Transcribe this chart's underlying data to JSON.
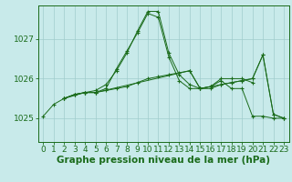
{
  "bg_color": "#c8eaea",
  "grid_color": "#a0cccc",
  "line_color": "#1a6b1a",
  "xlabel": "Graphe pression niveau de la mer (hPa)",
  "xlabel_fontsize": 7.5,
  "tick_fontsize": 6.5,
  "yticks": [
    1025,
    1026,
    1027
  ],
  "ylim": [
    1024.4,
    1027.85
  ],
  "xlim": [
    -0.5,
    23.5
  ],
  "xticks": [
    0,
    1,
    2,
    3,
    4,
    5,
    6,
    7,
    8,
    9,
    10,
    11,
    12,
    13,
    14,
    15,
    16,
    17,
    18,
    19,
    20,
    21,
    22,
    23
  ],
  "lines": [
    {
      "x": [
        0,
        1,
        2,
        3,
        4,
        5,
        6,
        7,
        8,
        9,
        10,
        11,
        12,
        13,
        14,
        15,
        16,
        17,
        18,
        19,
        20,
        21,
        22,
        23
      ],
      "y": [
        1025.05,
        1025.35,
        1025.5,
        1025.6,
        1025.65,
        1025.65,
        1025.75,
        1026.25,
        1026.7,
        1027.15,
        1027.65,
        1027.55,
        1026.55,
        1025.95,
        1025.75,
        1025.75,
        1025.8,
        1025.95,
        1025.75,
        1025.75,
        1025.05,
        1025.05,
        1025.0,
        1025.0
      ]
    },
    {
      "x": [
        2,
        3,
        4,
        5,
        6,
        7,
        8,
        9,
        10,
        11,
        12,
        13,
        14,
        15,
        16,
        17,
        18,
        19,
        20
      ],
      "y": [
        1025.5,
        1025.6,
        1025.65,
        1025.7,
        1025.85,
        1026.2,
        1026.65,
        1027.2,
        1027.7,
        1027.7,
        1026.65,
        1026.1,
        1025.85,
        1025.75,
        1025.8,
        1026.0,
        1026.0,
        1026.0,
        1025.9
      ]
    },
    {
      "x": [
        2,
        3,
        4,
        5,
        6,
        7,
        8,
        9,
        10,
        11,
        12,
        13,
        14,
        15,
        16,
        17,
        18,
        19,
        20,
        21,
        22,
        23
      ],
      "y": [
        1025.5,
        1025.6,
        1025.65,
        1025.65,
        1025.7,
        1025.75,
        1025.8,
        1025.9,
        1026.0,
        1026.05,
        1026.1,
        1026.15,
        1026.2,
        1025.75,
        1025.75,
        1025.85,
        1025.9,
        1025.95,
        1026.0,
        1026.6,
        1025.1,
        1025.0
      ]
    },
    {
      "x": [
        2,
        4,
        5,
        14,
        15,
        16,
        17,
        18,
        19,
        20,
        21,
        22,
        23
      ],
      "y": [
        1025.5,
        1025.65,
        1025.65,
        1026.2,
        1025.75,
        1025.8,
        1025.85,
        1025.9,
        1025.95,
        1026.0,
        1026.6,
        1025.1,
        1025.0
      ]
    }
  ]
}
